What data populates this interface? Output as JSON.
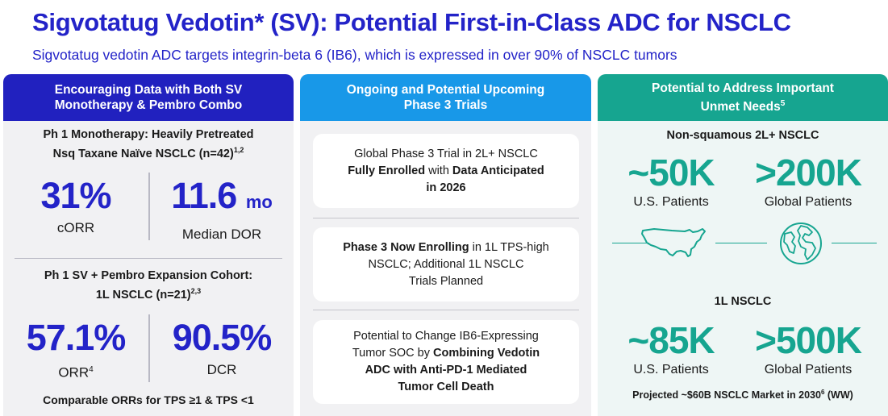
{
  "header": {
    "title": "Sigvotatug Vedotin* (SV): Potential First-in-Class ADC for NSCLC",
    "subtitle": "Sigvotatug vedotin ADC targets integrin-beta 6 (IB6), which is expressed in over 90% of NSCLC tumors"
  },
  "left": {
    "header_line1": "Encouraging Data with Both SV",
    "header_line2": "Monotherapy & Pembro Combo",
    "mono": {
      "title_line1": "Ph 1 Monotherapy: Heavily Pretreated",
      "title_line2": "Nsq Taxane Naïve NSCLC (n=42)",
      "title_sup": "1,2",
      "stat1_value": "31%",
      "stat1_label": "cORR",
      "stat2_value": "11.6",
      "stat2_unit": "mo",
      "stat2_label": "Median DOR"
    },
    "combo": {
      "title_line1": "Ph 1 SV + Pembro Expansion Cohort:",
      "title_line2": "1L NSCLC (n=21)",
      "title_sup": "2,3",
      "stat1_value": "57.1%",
      "stat1_label": "ORR",
      "stat1_sup": "4",
      "stat2_value": "90.5%",
      "stat2_label": "DCR"
    },
    "footnote": "Comparable ORRs for TPS ≥1 & TPS <1"
  },
  "middle": {
    "header_line1": "Ongoing and Potential Upcoming",
    "header_line2": "Phase 3 Trials",
    "trial1": {
      "line1": "Global Phase 3 Trial in 2L+ NSCLC",
      "bold1": "Fully Enrolled",
      "text1": " with ",
      "bold2": "Data Anticipated",
      "bold3": "in 2026"
    },
    "trial2": {
      "bold1": "Phase 3 Now Enrolling",
      "text1": " in 1L TPS-high",
      "line2": "NSCLC; Additional 1L NSCLC",
      "line3": "Trials Planned"
    },
    "trial3": {
      "line1": "Potential to Change IB6-Expressing",
      "text1": "Tumor SOC by ",
      "bold1": "Combining Vedotin",
      "bold2": "ADC with Anti-PD-1 Mediated",
      "bold3": "Tumor Cell Death"
    }
  },
  "right": {
    "header_line1": "Potential to Address Important",
    "header_line2": "Unmet Needs",
    "header_sup": "5",
    "nsq_title": "Non-squamous 2L+ NSCLC",
    "nsq_us_value": "~50K",
    "nsq_us_label": "U.S. Patients",
    "nsq_global_value": ">200K",
    "nsq_global_label": "Global Patients",
    "us_icon": "usa-map-icon",
    "globe_icon": "globe-icon",
    "l1_title": "1L NSCLC",
    "l1_us_value": "~85K",
    "l1_us_label": "U.S. Patients",
    "l1_global_value": ">500K",
    "l1_global_label": "Global Patients",
    "footnote_pre": "Projected ~$60B NSCLC Market in 2030",
    "footnote_sup": "6",
    "footnote_post": " (WW)"
  },
  "colors": {
    "brand_blue": "#2323c8",
    "sky_blue": "#1898e8",
    "teal": "#16a590"
  }
}
